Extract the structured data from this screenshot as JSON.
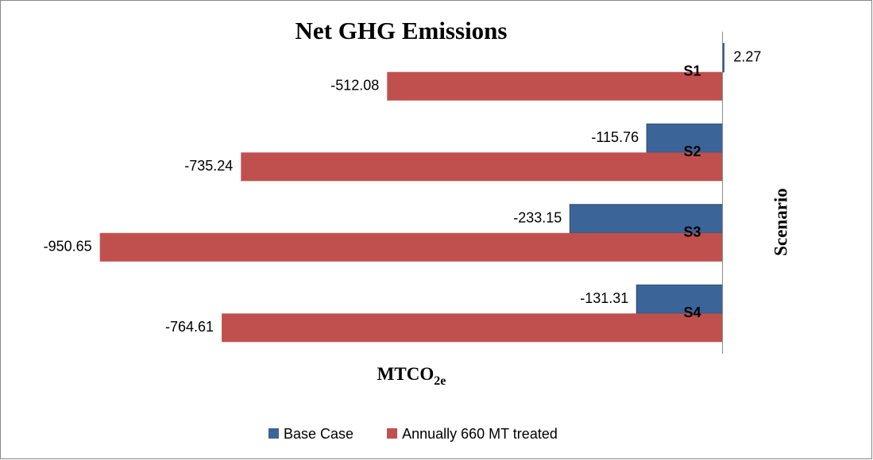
{
  "chart_data": {
    "type": "bar",
    "orientation": "horizontal",
    "title": "Net GHG Emissions",
    "x_label": "MTCO",
    "x_label_subscript": "2e",
    "y_label": "Scenario",
    "categories": [
      "S1",
      "S2",
      "S3",
      "S4"
    ],
    "series": [
      {
        "name": "Base Case",
        "color": "#3b6499",
        "values": [
          2.27,
          -115.76,
          -233.15,
          -131.31
        ]
      },
      {
        "name": "Annually 660 MT treated",
        "color": "#c0504d",
        "values": [
          -512.08,
          -735.24,
          -950.65,
          -764.61
        ]
      }
    ],
    "xlim": [
      -1000,
      100
    ],
    "legend": "bottom"
  }
}
